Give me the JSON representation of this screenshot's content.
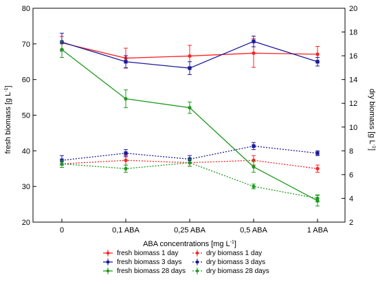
{
  "chart_data": {
    "type": "line",
    "categories": [
      "0",
      "0,1 ABA",
      "0,25 ABA",
      "0,5 ABA",
      "1 ABA"
    ],
    "xlabel_main": "ABA concentrations [mg L",
    "xlabel_sup": "-1",
    "xlabel_end": "]",
    "ylabel_left_main": "fresh biomass [g L",
    "ylabel_left_sup": "-1",
    "ylabel_left_end": "]",
    "ylabel_right_main": "dry biomass [g L",
    "ylabel_right_sup": "-1",
    "ylabel_right_end": "]",
    "ylim_left": [
      20,
      80
    ],
    "yticks_left": [
      20,
      30,
      40,
      50,
      60,
      70,
      80
    ],
    "ylim_right": [
      2,
      20
    ],
    "yticks_right": [
      2,
      4,
      6,
      8,
      10,
      12,
      14,
      16,
      18,
      20
    ],
    "grid": false,
    "legend_position": "bottom",
    "series": [
      {
        "name": "fresh biomass 1 day",
        "axis": "left",
        "color": "#ff2020",
        "dash": "solid",
        "marker": "circle",
        "values": [
          70.3,
          66.0,
          66.6,
          67.4,
          67.1
        ],
        "errors": [
          1.8,
          2.8,
          3.0,
          4.0,
          2.2
        ]
      },
      {
        "name": "dry biomass 1 day",
        "axis": "right",
        "color": "#ff2020",
        "dash": "dotted",
        "marker": "circle",
        "values": [
          6.9,
          7.2,
          7.0,
          7.2,
          6.5
        ],
        "errors": [
          0.3,
          0.4,
          0.3,
          0.4,
          0.3
        ]
      },
      {
        "name": "fresh biomass 3 days",
        "axis": "left",
        "color": "#1a1a9a",
        "dash": "solid",
        "marker": "square",
        "values": [
          70.5,
          65.0,
          63.2,
          70.7,
          65.0
        ],
        "errors": [
          2.5,
          1.7,
          1.8,
          1.5,
          1.2
        ]
      },
      {
        "name": "dry biomass 3 days",
        "axis": "right",
        "color": "#1a1a9a",
        "dash": "dotted",
        "marker": "square",
        "values": [
          7.2,
          7.8,
          7.3,
          8.4,
          7.8
        ],
        "errors": [
          0.4,
          0.3,
          0.3,
          0.3,
          0.2
        ]
      },
      {
        "name": "fresh biomass 28 days",
        "axis": "left",
        "color": "#1e9a1e",
        "dash": "solid",
        "marker": "circle",
        "values": [
          68.4,
          54.6,
          52.1,
          35.5,
          26.0
        ],
        "errors": [
          2.2,
          2.5,
          1.6,
          1.5,
          1.5
        ]
      },
      {
        "name": "dry biomass 28 days",
        "axis": "right",
        "color": "#1e9a1e",
        "dash": "dotted",
        "marker": "circle",
        "values": [
          6.9,
          6.5,
          7.0,
          5.0,
          4.0
        ],
        "errors": [
          0.3,
          0.3,
          0.3,
          0.2,
          0.3
        ]
      }
    ]
  }
}
